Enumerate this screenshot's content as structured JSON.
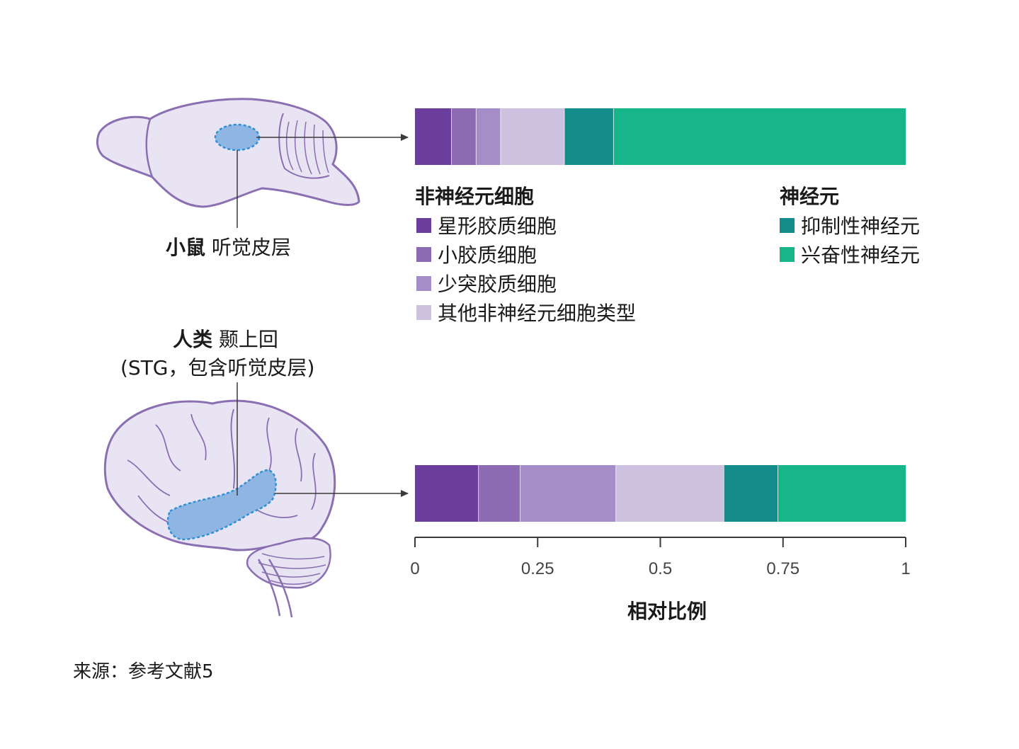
{
  "colors": {
    "outline": "#8a6fb2",
    "brain_fill": "#e9e4f3",
    "region_fill": "#8fb5e3",
    "region_stroke": "#2f8fd6",
    "arrow": "#3a3a3a"
  },
  "mouse": {
    "species": "小鼠",
    "region": "听觉皮层"
  },
  "human": {
    "species": "人类",
    "region": "颞上回",
    "note": "(STG，包含听觉皮层)"
  },
  "legend": {
    "non_neuronal_title": "非神经元细胞",
    "neuron_title": "神经元",
    "items": [
      {
        "label": "星形胶质细胞",
        "color": "#6c3e9c"
      },
      {
        "label": "小胶质细胞",
        "color": "#8c6bb3"
      },
      {
        "label": "少突胶质细胞",
        "color": "#a58ec7"
      },
      {
        "label": "其他非神经元细胞类型",
        "color": "#cdc1e0"
      },
      {
        "label": "抑制性神经元",
        "color": "#148c8c"
      },
      {
        "label": "兴奋性神经元",
        "color": "#17b68a"
      }
    ]
  },
  "chart_data": {
    "type": "bar",
    "orientation": "horizontal",
    "stacked": true,
    "categories": [
      "小鼠 听觉皮层",
      "人类 颞上回"
    ],
    "series": [
      {
        "name": "星形胶质细胞",
        "values": [
          0.075,
          0.13
        ]
      },
      {
        "name": "小胶质细胞",
        "values": [
          0.05,
          0.085
        ]
      },
      {
        "name": "少突胶质细胞",
        "values": [
          0.05,
          0.195
        ]
      },
      {
        "name": "其他非神经元细胞类型",
        "values": [
          0.13,
          0.22
        ]
      },
      {
        "name": "抑制性神经元",
        "values": [
          0.1,
          0.11
        ]
      },
      {
        "name": "兴奋性神经元",
        "values": [
          0.595,
          0.26
        ]
      }
    ],
    "xlim": [
      0,
      1
    ],
    "xticks": [
      "0",
      "0.25",
      "0.5",
      "0.75",
      "1"
    ],
    "xlabel": "相对比例",
    "grid": false
  },
  "source": "来源：参考文献5"
}
